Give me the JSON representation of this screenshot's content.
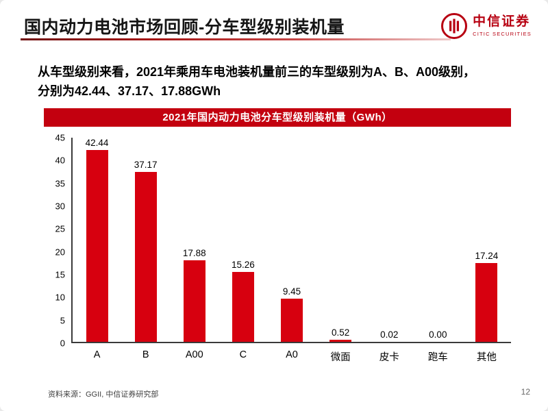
{
  "slide": {
    "title": "国内动力电池市场回顾-分车型级别装机量",
    "source": "资料来源：GGII, 中信证券研究部",
    "page_number": "12"
  },
  "logo": {
    "name_cn": "中信证券",
    "name_en": "CITIC SECURITIES",
    "icon": "citic-ring-pillars-icon",
    "color": "#b70011"
  },
  "body": {
    "lines": [
      "从车型级别来看，2021年乘用车电池装机量前三的车型级别为A、B、A00级别，",
      "分别为42.44、37.17、17.88GWh"
    ]
  },
  "chart_data": {
    "type": "bar",
    "title": "2021年国内动力电池分车型级别装机量（GWh）",
    "categories": [
      "A",
      "B",
      "A00",
      "C",
      "A0",
      "微面",
      "皮卡",
      "跑车",
      "其他"
    ],
    "values": [
      42.44,
      37.17,
      17.88,
      15.26,
      9.45,
      0.52,
      0.02,
      0.0,
      17.24
    ],
    "labels": [
      "42.44",
      "37.17",
      "17.88",
      "15.26",
      "9.45",
      "0.52",
      "0.02",
      "0.00",
      "17.24"
    ],
    "xlabel": "",
    "ylabel": "",
    "ylim": [
      0,
      45
    ],
    "yticks": [
      0,
      5,
      10,
      15,
      20,
      25,
      30,
      35,
      40,
      45
    ],
    "grid": "off",
    "legend": "none",
    "bar_color": "#d7000f",
    "banner_color": "#c3000f"
  }
}
